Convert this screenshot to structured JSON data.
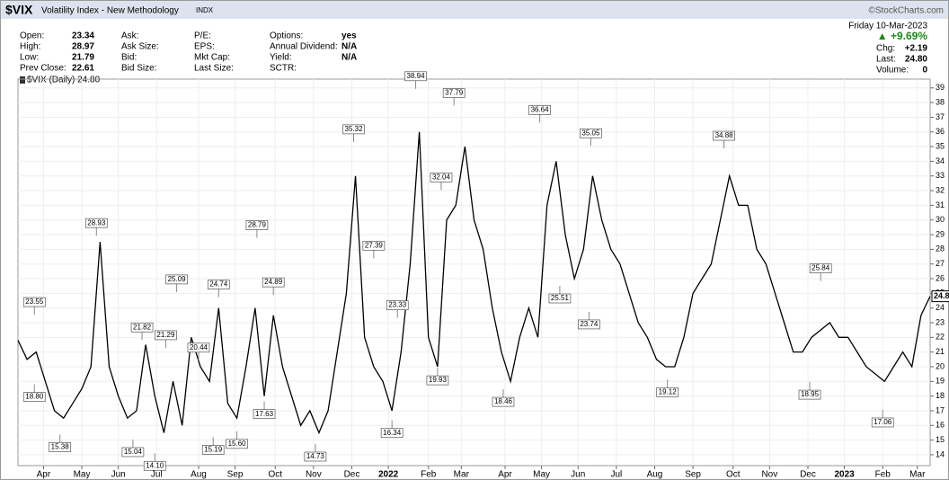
{
  "header": {
    "symbol": "$VIX",
    "name": "Volatility Index - New Methodology",
    "exchange": "INDX",
    "copyright": "©StockCharts.com",
    "fields": [
      [
        {
          "label": "Open:",
          "value": "23.34"
        },
        {
          "label": "High:",
          "value": "28.97"
        },
        {
          "label": "Low:",
          "value": "21.79"
        },
        {
          "label": "Prev Close:",
          "value": "22.61"
        }
      ],
      [
        {
          "label": "Ask:",
          "value": ""
        },
        {
          "label": "Ask Size:",
          "value": ""
        },
        {
          "label": "Bid:",
          "value": ""
        },
        {
          "label": "Bid Size:",
          "value": ""
        }
      ],
      [
        {
          "label": "P/E:",
          "value": ""
        },
        {
          "label": "EPS:",
          "value": ""
        },
        {
          "label": "Mkt Cap:",
          "value": ""
        },
        {
          "label": "Last Size:",
          "value": ""
        }
      ],
      [
        {
          "label": "Options:",
          "value": "yes"
        },
        {
          "label": "Annual Dividend:",
          "value": "N/A"
        },
        {
          "label": "Yield:",
          "value": "N/A"
        },
        {
          "label": "SCTR:",
          "value": ""
        }
      ]
    ],
    "date": "Friday  10-Mar-2023",
    "change_pct": "▲ +9.69%",
    "right": [
      {
        "label": "Chg:",
        "value": "+2.19"
      },
      {
        "label": "Last:",
        "value": "24.80"
      },
      {
        "label": "Volume:",
        "value": "0"
      }
    ]
  },
  "chart_data": {
    "type": "line",
    "legend": "$VIX (Daily) 24.80",
    "color": "#000000",
    "x": [
      0,
      5,
      10,
      15,
      20,
      25,
      30,
      35,
      40,
      45,
      50,
      55,
      60,
      65,
      70,
      75,
      80,
      85,
      90,
      95,
      100,
      105,
      110,
      115,
      120,
      125,
      130,
      135,
      140,
      145,
      150,
      155,
      160,
      165,
      170,
      175,
      180,
      185,
      190,
      195,
      200,
      205,
      210,
      215,
      220,
      225,
      230,
      235,
      240,
      245,
      250,
      255,
      260,
      265,
      270,
      275,
      280,
      285,
      290,
      295,
      300,
      305,
      310,
      315,
      320,
      325,
      330,
      335,
      340,
      345,
      350,
      355,
      360,
      365,
      370,
      375,
      380,
      385,
      390,
      395,
      400,
      405,
      410,
      415,
      420,
      425,
      430,
      435,
      440,
      445,
      450,
      455,
      460,
      465,
      470,
      475,
      480,
      485,
      490,
      495,
      500
    ],
    "series": [
      {
        "name": "$VIX",
        "color": "#000000",
        "values": [
          21.8,
          20.5,
          21,
          19,
          17,
          16.5,
          17.5,
          18.5,
          20,
          28.5,
          20,
          18,
          16.5,
          17,
          21.5,
          18,
          15.5,
          19,
          16,
          22,
          20,
          19,
          24,
          17.5,
          16.5,
          20,
          24,
          18,
          23.5,
          20,
          18,
          16,
          17,
          15.5,
          17,
          21,
          25,
          33,
          22,
          20,
          19,
          17,
          21,
          27,
          36,
          22,
          20,
          30,
          31,
          35,
          30,
          28,
          24,
          21,
          19,
          22,
          24,
          22,
          31,
          34,
          29,
          26,
          28,
          33,
          30,
          28,
          27,
          25,
          23,
          22,
          20.5,
          20,
          20,
          22,
          25,
          26,
          27,
          30,
          33,
          31,
          31,
          28,
          27,
          25,
          23,
          21,
          21,
          22,
          22.5,
          23,
          22,
          22,
          21,
          20,
          19.5,
          19,
          20,
          21,
          20,
          23.5,
          24.8
        ]
      }
    ],
    "xlim": [
      0,
      500
    ],
    "xticks": [
      {
        "value": 14,
        "label": "Apr"
      },
      {
        "value": 35,
        "label": "May"
      },
      {
        "value": 55,
        "label": "Jun"
      },
      {
        "value": 76,
        "label": "Jul"
      },
      {
        "value": 99,
        "label": "Aug"
      },
      {
        "value": 119,
        "label": "Sep"
      },
      {
        "value": 141,
        "label": "Oct"
      },
      {
        "value": 162,
        "label": "Nov"
      },
      {
        "value": 183,
        "label": "Dec"
      },
      {
        "value": 203,
        "label": "2022"
      },
      {
        "value": 225,
        "label": "Feb"
      },
      {
        "value": 243,
        "label": "Mar"
      },
      {
        "value": 267,
        "label": "Apr"
      },
      {
        "value": 287,
        "label": "May"
      },
      {
        "value": 307,
        "label": "Jun"
      },
      {
        "value": 328,
        "label": "Jul"
      },
      {
        "value": 349,
        "label": "Aug"
      },
      {
        "value": 370,
        "label": "Sep"
      },
      {
        "value": 392,
        "label": "Oct"
      },
      {
        "value": 412,
        "label": "Nov"
      },
      {
        "value": 433,
        "label": "Dec"
      },
      {
        "value": 453,
        "label": "2023"
      },
      {
        "value": 474,
        "label": "Feb"
      },
      {
        "value": 493,
        "label": "Mar"
      }
    ],
    "ylim": [
      13.26,
      39.6
    ],
    "yticks": [
      14,
      15,
      16,
      17,
      18,
      19,
      20,
      21,
      22,
      23,
      24,
      25,
      26,
      27,
      28,
      29,
      30,
      31,
      32,
      33,
      34,
      35,
      36,
      37,
      38,
      39
    ],
    "grid": true,
    "annotations": [
      {
        "x": 9,
        "y": 23.55,
        "label": "23.55"
      },
      {
        "x": 9,
        "y": 18.8,
        "label": "18.80"
      },
      {
        "x": 23,
        "y": 15.38,
        "label": "15.38"
      },
      {
        "x": 43,
        "y": 28.93,
        "label": "28.93"
      },
      {
        "x": 63,
        "y": 15.04,
        "label": "15.04"
      },
      {
        "x": 68,
        "y": 21.82,
        "label": "21.82"
      },
      {
        "x": 75,
        "y": 14.1,
        "label": "14.10"
      },
      {
        "x": 81,
        "y": 21.29,
        "label": "21.29"
      },
      {
        "x": 87,
        "y": 25.09,
        "label": "25.09"
      },
      {
        "x": 99,
        "y": 20.44,
        "label": "20.44"
      },
      {
        "x": 107,
        "y": 15.19,
        "label": "15.19"
      },
      {
        "x": 110,
        "y": 24.74,
        "label": "24.74"
      },
      {
        "x": 120,
        "y": 15.6,
        "label": "15.60"
      },
      {
        "x": 131,
        "y": 28.79,
        "label": "28.79"
      },
      {
        "x": 135,
        "y": 17.63,
        "label": "17.63"
      },
      {
        "x": 140,
        "y": 24.89,
        "label": "24.89"
      },
      {
        "x": 163,
        "y": 14.73,
        "label": "14.73"
      },
      {
        "x": 184,
        "y": 35.32,
        "label": "35.32"
      },
      {
        "x": 195,
        "y": 27.39,
        "label": "27.39"
      },
      {
        "x": 205,
        "y": 16.34,
        "label": "16.34"
      },
      {
        "x": 208,
        "y": 23.33,
        "label": "23.33"
      },
      {
        "x": 218,
        "y": 38.94,
        "label": "38.94"
      },
      {
        "x": 230,
        "y": 19.93,
        "label": "19.93"
      },
      {
        "x": 232,
        "y": 32.04,
        "label": "32.04"
      },
      {
        "x": 239,
        "y": 37.79,
        "label": "37.79"
      },
      {
        "x": 266,
        "y": 18.46,
        "label": "18.46"
      },
      {
        "x": 286,
        "y": 36.64,
        "label": "36.64"
      },
      {
        "x": 297,
        "y": 25.51,
        "label": "25.51"
      },
      {
        "x": 314,
        "y": 35.05,
        "label": "35.05"
      },
      {
        "x": 313,
        "y": 23.74,
        "label": "23.74"
      },
      {
        "x": 356,
        "y": 19.12,
        "label": "19.12"
      },
      {
        "x": 387,
        "y": 34.88,
        "label": "34.88"
      },
      {
        "x": 434,
        "y": 18.95,
        "label": "18.95"
      },
      {
        "x": 440,
        "y": 25.84,
        "label": "25.84"
      },
      {
        "x": 474,
        "y": 17.06,
        "label": "17.06"
      }
    ]
  }
}
